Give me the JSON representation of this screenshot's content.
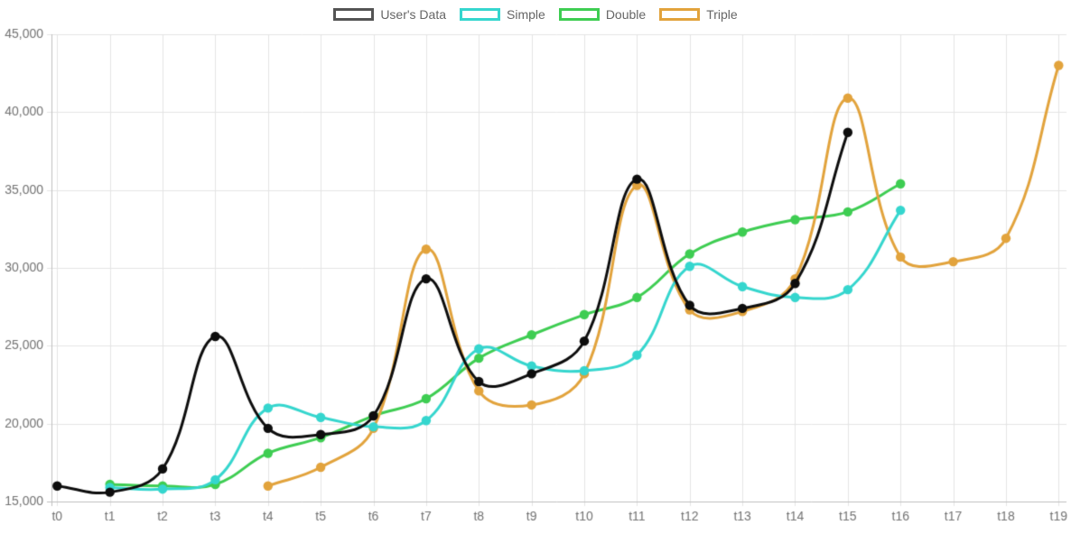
{
  "chart_data": {
    "type": "line",
    "title": "",
    "xlabel": "",
    "ylabel": "",
    "x_categories": [
      "t0",
      "t1",
      "t2",
      "t3",
      "t4",
      "t5",
      "t6",
      "t7",
      "t8",
      "t9",
      "t10",
      "t11",
      "t12",
      "t13",
      "t14",
      "t15",
      "t16",
      "t17",
      "t18",
      "t19"
    ],
    "y_ticks": [
      15000,
      20000,
      25000,
      30000,
      35000,
      40000,
      45000
    ],
    "ylim": [
      15000,
      45000
    ],
    "grid": true,
    "legend_position": "top",
    "line_tension": 0.4,
    "colors": {
      "grid_line": "#e5e5e5",
      "axis_border": "#c0c0c0",
      "tick_label": "#737373",
      "legend_text": "#666666",
      "background": "#ffffff"
    },
    "series": [
      {
        "name": "User's Data",
        "line_color": "#0d0d0d",
        "legend_box_color": "#545454",
        "values": [
          16000,
          15600,
          17100,
          25600,
          19700,
          19300,
          20500,
          29300,
          22700,
          23200,
          25300,
          35700,
          27600,
          27400,
          29000,
          38700,
          null,
          null,
          null,
          null
        ]
      },
      {
        "name": "Simple",
        "line_color": "#35d6ce",
        "legend_box_color": "#35d6ce",
        "values": [
          null,
          15900,
          15800,
          16400,
          21000,
          20400,
          19800,
          20200,
          24800,
          23700,
          23400,
          24400,
          30100,
          28800,
          28100,
          28600,
          33700,
          null,
          null,
          null
        ]
      },
      {
        "name": "Double",
        "line_color": "#3ecd52",
        "legend_box_color": "#3ecd52",
        "values": [
          null,
          16100,
          16000,
          16100,
          18100,
          19100,
          20500,
          21600,
          24200,
          25700,
          27000,
          28100,
          30900,
          32300,
          33100,
          33600,
          35400,
          null,
          null,
          null
        ]
      },
      {
        "name": "Triple",
        "line_color": "#e2a33c",
        "legend_box_color": "#e2a33c",
        "values": [
          null,
          null,
          null,
          null,
          16000,
          17200,
          19700,
          31200,
          22100,
          21200,
          23200,
          35300,
          27300,
          27200,
          29300,
          40900,
          30700,
          30400,
          31900,
          43000
        ]
      }
    ]
  }
}
